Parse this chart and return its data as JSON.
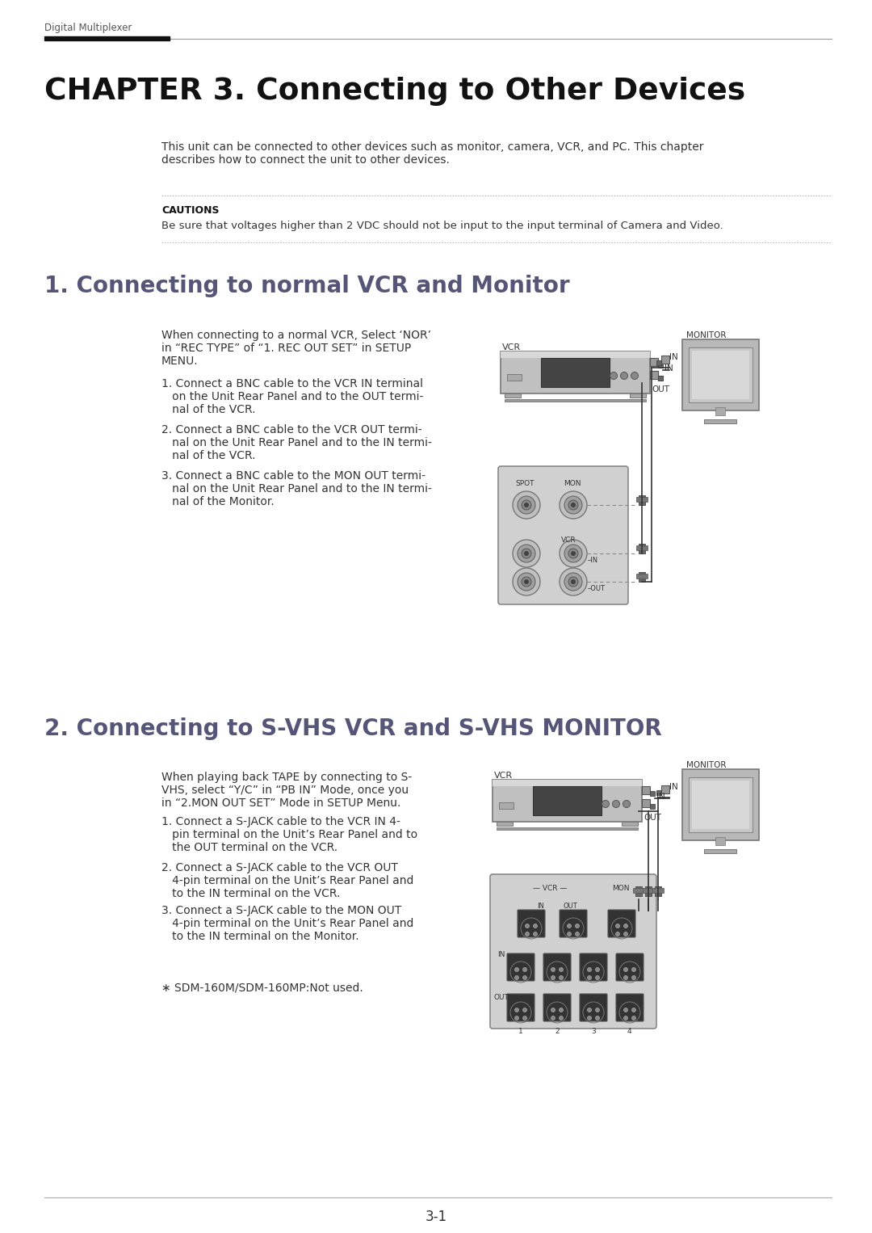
{
  "bg_color": "#ffffff",
  "header_text": "Digital Multiplexer",
  "chapter_title": "CHAPTER 3. Connecting to Other Devices",
  "intro_text": "This unit can be connected to other devices such as monitor, camera, VCR, and PC. This chapter\ndescribes how to connect the unit to other devices.",
  "caution_label": "CAUTIONS",
  "caution_text": "Be sure that voltages higher than 2 VDC should not be input to the input terminal of Camera and Video.",
  "section1_title": "1. Connecting to normal VCR and Monitor",
  "section1_intro": "When connecting to a normal VCR, Select ‘NOR’\nin “REC TYPE” of “1. REC OUT SET” in SETUP\nMENU.",
  "section1_item1": "1. Connect a BNC cable to the VCR IN terminal\n   on the Unit Rear Panel and to the OUT termi-\n   nal of the VCR.",
  "section1_item2": "2. Connect a BNC cable to the VCR OUT termi-\n   nal on the Unit Rear Panel and to the IN termi-\n   nal of the VCR.",
  "section1_item3": "3. Connect a BNC cable to the MON OUT termi-\n   nal on the Unit Rear Panel and to the IN termi-\n   nal of the Monitor.",
  "section2_title": "2. Connecting to S-VHS VCR and S-VHS MONITOR",
  "section2_intro": "When playing back TAPE by connecting to S-\nVHS, select “Y/C” in “PB IN” Mode, once you\nin “2.MON OUT SET” Mode in SETUP Menu.",
  "section2_item1": "1. Connect a S-JACK cable to the VCR IN 4-\n   pin terminal on the Unit’s Rear Panel and to\n   the OUT terminal on the VCR.",
  "section2_item2": "2. Connect a S-JACK cable to the VCR OUT\n   4-pin terminal on the Unit’s Rear Panel and\n   to the IN terminal on the VCR.",
  "section2_item3": "3. Connect a S-JACK cable to the MON OUT\n   4-pin terminal on the Unit’s Rear Panel and\n   to the IN terminal on the Monitor.",
  "section2_note": "∗ SDM-160M/SDM-160MP:Not used.",
  "page_number": "3-1",
  "vcr_color": "#b8b8b8",
  "vcr_screen_color": "#555555",
  "vcr_body_edge": "#777777",
  "monitor_color": "#b0b0b0",
  "monitor_screen_color": "#c8c8c8",
  "panel_color": "#cccccc",
  "panel_edge": "#888888",
  "connector_dark": "#444444",
  "connector_ring": "#888888",
  "line_color": "#333333",
  "dashed_color": "#888888",
  "text_color": "#333333",
  "title_color": "#333333",
  "section_title_color": "#555577"
}
